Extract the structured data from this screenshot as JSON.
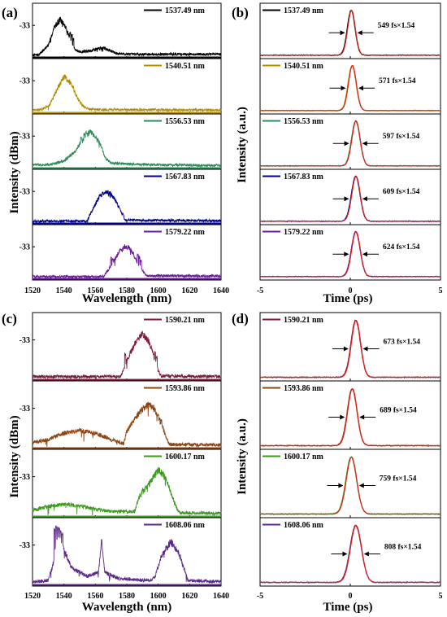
{
  "panels": [
    {
      "label": "(a)",
      "ylabel": "Intensity (dBm)",
      "xlabel": "Wavelength (nm)"
    },
    {
      "label": "(b)",
      "ylabel": "Intensity (a.u.)",
      "xlabel": "Time (ps)"
    },
    {
      "label": "(c)",
      "ylabel": "Intensity (dBm)",
      "xlabel": "Wavelength (nm)"
    },
    {
      "label": "(d)",
      "ylabel": "Intensity (a.u.)",
      "xlabel": "Time (ps)"
    }
  ],
  "chart_data": [
    {
      "type": "line",
      "panel": "(a)",
      "xlabel": "Wavelength (nm)",
      "ylabel": "Intensity (dBm)",
      "xlim": [
        1520,
        1640
      ],
      "xticks": [
        1520,
        1540,
        1560,
        1580,
        1600,
        1620,
        1640
      ],
      "ytick_label": "-33",
      "series": [
        {
          "name": "1537.49 nm",
          "color": "#000000",
          "peak_x": 1537.5,
          "envelope": [
            [
              1520,
              0.02
            ],
            [
              1524,
              0.03
            ],
            [
              1530,
              0.22
            ],
            [
              1534,
              0.6
            ],
            [
              1537.5,
              0.76
            ],
            [
              1541,
              0.6
            ],
            [
              1544,
              0.35
            ],
            [
              1547,
              0.14
            ],
            [
              1550,
              0.09
            ],
            [
              1556,
              0.1
            ],
            [
              1561,
              0.15
            ],
            [
              1565,
              0.17
            ],
            [
              1568,
              0.14
            ],
            [
              1573,
              0.06
            ],
            [
              1580,
              0.04
            ],
            [
              1640,
              0.04
            ]
          ],
          "spikes": [
            [
              1544,
              0.5
            ],
            [
              1545,
              0.45
            ],
            [
              1546,
              0.38
            ]
          ]
        },
        {
          "name": "1540.51 nm",
          "color": "#B48C00",
          "peak_x": 1540.5,
          "envelope": [
            [
              1520,
              0.02
            ],
            [
              1526,
              0.04
            ],
            [
              1531,
              0.14
            ],
            [
              1536,
              0.48
            ],
            [
              1540.5,
              0.72
            ],
            [
              1545,
              0.55
            ],
            [
              1549,
              0.25
            ],
            [
              1553,
              0.08
            ],
            [
              1556,
              0.05
            ],
            [
              1560,
              0.04
            ],
            [
              1640,
              0.03
            ]
          ],
          "spikes": []
        },
        {
          "name": "1556.53 nm",
          "color": "#2E8B57",
          "peak_x": 1556.5,
          "envelope": [
            [
              1520,
              0.04
            ],
            [
              1532,
              0.05
            ],
            [
              1540,
              0.12
            ],
            [
              1547,
              0.32
            ],
            [
              1551,
              0.5
            ],
            [
              1556.5,
              0.72
            ],
            [
              1561,
              0.6
            ],
            [
              1564,
              0.38
            ],
            [
              1567,
              0.15
            ],
            [
              1570,
              0.08
            ],
            [
              1580,
              0.06
            ],
            [
              1600,
              0.04
            ],
            [
              1640,
              0.03
            ]
          ],
          "spikes": [
            [
              1551,
              0.63
            ],
            [
              1553,
              0.7
            ],
            [
              1554,
              0.74
            ],
            [
              1555,
              0.66
            ]
          ]
        },
        {
          "name": "1567.83 nm",
          "color": "#00008B",
          "peak_x": 1567.8,
          "envelope": [
            [
              1520,
              0.02
            ],
            [
              1555,
              0.02
            ],
            [
              1556,
              0.12
            ],
            [
              1559,
              0.3
            ],
            [
              1563,
              0.55
            ],
            [
              1567.8,
              0.62
            ],
            [
              1571,
              0.55
            ],
            [
              1575,
              0.3
            ],
            [
              1578,
              0.12
            ],
            [
              1579,
              0.04
            ],
            [
              1640,
              0.03
            ]
          ],
          "spikes": []
        },
        {
          "name": "1579.22 nm",
          "color": "#6A1B9A",
          "peak_x": 1579.2,
          "envelope": [
            [
              1520,
              0.02
            ],
            [
              1565,
              0.02
            ],
            [
              1567,
              0.1
            ],
            [
              1571,
              0.3
            ],
            [
              1575,
              0.52
            ],
            [
              1579.2,
              0.65
            ],
            [
              1583,
              0.55
            ],
            [
              1587,
              0.3
            ],
            [
              1591,
              0.1
            ],
            [
              1593,
              0.04
            ],
            [
              1640,
              0.03
            ]
          ],
          "spikes": [
            [
              1570,
              0.45
            ],
            [
              1571,
              0.4
            ],
            [
              1572,
              0.35
            ],
            [
              1587,
              0.5
            ],
            [
              1588,
              0.45
            ],
            [
              1589,
              0.38
            ]
          ]
        }
      ]
    },
    {
      "type": "line",
      "panel": "(b)",
      "xlabel": "Time (ps)",
      "ylabel": "Intensity (a.u.)",
      "xlim": [
        -5,
        5
      ],
      "xticks": [
        -5,
        0,
        5
      ],
      "series": [
        {
          "name": "1537.49 nm",
          "color": "#000000",
          "center": 0.05,
          "width_fs": 549,
          "annotation": "549 fs×1.54"
        },
        {
          "name": "1540.51 nm",
          "color": "#B48C00",
          "center": 0.1,
          "width_fs": 571,
          "annotation": "571 fs×1.54"
        },
        {
          "name": "1556.53 nm",
          "color": "#2E8B57",
          "center": 0.3,
          "width_fs": 597,
          "annotation": "597 fs×1.54"
        },
        {
          "name": "1567.83 nm",
          "color": "#00008B",
          "center": 0.3,
          "width_fs": 609,
          "annotation": "609 fs×1.54"
        },
        {
          "name": "1579.22 nm",
          "color": "#6A1B9A",
          "center": 0.3,
          "width_fs": 624,
          "annotation": "624 fs×1.54"
        }
      ]
    },
    {
      "type": "line",
      "panel": "(c)",
      "xlabel": "Wavelength (nm)",
      "ylabel": "Intensity (dBm)",
      "xlim": [
        1520,
        1640
      ],
      "xticks": [
        1520,
        1540,
        1560,
        1580,
        1600,
        1620,
        1640
      ],
      "ytick_label": "-33",
      "series": [
        {
          "name": "1590.21 nm",
          "color": "#7B1E3A",
          "peak_x": 1590.2,
          "envelope": [
            [
              1520,
              0.03
            ],
            [
              1576,
              0.03
            ],
            [
              1578,
              0.15
            ],
            [
              1582,
              0.4
            ],
            [
              1586,
              0.6
            ],
            [
              1590.2,
              0.72
            ],
            [
              1594,
              0.6
            ],
            [
              1597,
              0.38
            ],
            [
              1600,
              0.12
            ],
            [
              1602,
              0.04
            ],
            [
              1640,
              0.03
            ]
          ],
          "spikes": [
            [
              1579,
              0.42
            ],
            [
              1580,
              0.35
            ],
            [
              1598,
              0.45
            ],
            [
              1599,
              0.38
            ]
          ]
        },
        {
          "name": "1593.86 nm",
          "color": "#8B4513",
          "peak_x": 1593.9,
          "envelope": [
            [
              1520,
              0.07
            ],
            [
              1530,
              0.12
            ],
            [
              1540,
              0.22
            ],
            [
              1550,
              0.26
            ],
            [
              1560,
              0.22
            ],
            [
              1570,
              0.12
            ],
            [
              1578,
              0.05
            ],
            [
              1580,
              0.25
            ],
            [
              1585,
              0.45
            ],
            [
              1589,
              0.58
            ],
            [
              1593.9,
              0.7
            ],
            [
              1598,
              0.6
            ],
            [
              1602,
              0.38
            ],
            [
              1605,
              0.15
            ],
            [
              1607,
              0.04
            ],
            [
              1640,
              0.03
            ]
          ],
          "spikes": [
            [
              1600,
              0.55
            ],
            [
              1601,
              0.5
            ],
            [
              1602,
              0.45
            ]
          ]
        },
        {
          "name": "1600.17 nm",
          "color": "#3C9A1E",
          "peak_x": 1600.2,
          "envelope": [
            [
              1520,
              0.08
            ],
            [
              1530,
              0.14
            ],
            [
              1540,
              0.18
            ],
            [
              1550,
              0.15
            ],
            [
              1560,
              0.1
            ],
            [
              1570,
              0.06
            ],
            [
              1585,
              0.06
            ],
            [
              1588,
              0.3
            ],
            [
              1594,
              0.5
            ],
            [
              1600.2,
              0.74
            ],
            [
              1605,
              0.6
            ],
            [
              1609,
              0.3
            ],
            [
              1612,
              0.1
            ],
            [
              1614,
              0.04
            ],
            [
              1640,
              0.03
            ]
          ],
          "spikes": [
            [
              1590,
              0.45
            ],
            [
              1591,
              0.4
            ],
            [
              1592,
              0.48
            ]
          ]
        },
        {
          "name": "1608.06 nm",
          "color": "#5B2A86",
          "peak_x": 1608.1,
          "envelope": [
            [
              1520,
              0.03
            ],
            [
              1530,
              0.05
            ],
            [
              1533,
              0.3
            ],
            [
              1536,
              0.82
            ],
            [
              1540,
              0.55
            ],
            [
              1545,
              0.25
            ],
            [
              1555,
              0.12
            ],
            [
              1562,
              0.18
            ],
            [
              1564,
              0.7
            ],
            [
              1566,
              0.18
            ],
            [
              1575,
              0.08
            ],
            [
              1595,
              0.05
            ],
            [
              1598,
              0.12
            ],
            [
              1602,
              0.45
            ],
            [
              1608.1,
              0.68
            ],
            [
              1613,
              0.5
            ],
            [
              1617,
              0.2
            ],
            [
              1619,
              0.05
            ],
            [
              1640,
              0.03
            ]
          ],
          "spikes": [
            [
              1534,
              0.9
            ],
            [
              1535,
              0.94
            ],
            [
              1536,
              0.95
            ],
            [
              1537,
              0.92
            ],
            [
              1538,
              0.88
            ],
            [
              1539,
              0.84
            ]
          ]
        }
      ]
    },
    {
      "type": "line",
      "panel": "(d)",
      "xlabel": "Time (ps)",
      "ylabel": "Intensity (a.u.)",
      "xlim": [
        -5,
        5
      ],
      "xticks": [
        -5,
        0,
        5
      ],
      "series": [
        {
          "name": "1590.21 nm",
          "color": "#7B1E3A",
          "center": 0.3,
          "width_fs": 673,
          "annotation": "673 fs×1.54"
        },
        {
          "name": "1593.86 nm",
          "color": "#8B4513",
          "center": 0.1,
          "width_fs": 689,
          "annotation": "689 fs×1.54"
        },
        {
          "name": "1600.17 nm",
          "color": "#3C9A1E",
          "center": 0.05,
          "width_fs": 759,
          "annotation": "759 fs×1.54"
        },
        {
          "name": "1608.06 nm",
          "color": "#5B2A86",
          "center": 0.3,
          "width_fs": 808,
          "annotation": "808 fs×1.54"
        }
      ]
    }
  ]
}
